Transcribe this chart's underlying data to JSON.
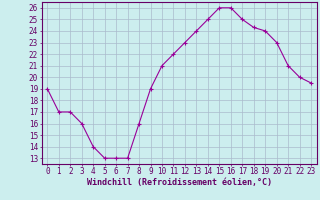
{
  "x": [
    0,
    1,
    2,
    3,
    4,
    5,
    6,
    7,
    8,
    9,
    10,
    11,
    12,
    13,
    14,
    15,
    16,
    17,
    18,
    19,
    20,
    21,
    22,
    23
  ],
  "y": [
    19,
    17,
    17,
    16,
    14,
    13,
    13,
    13,
    16,
    19,
    21,
    22,
    23,
    24,
    25,
    26,
    26,
    25,
    24.3,
    24,
    23,
    21,
    20,
    19.5
  ],
  "line_color": "#990099",
  "marker": "+",
  "marker_size": 3,
  "bg_color": "#cceeee",
  "grid_color": "#aabbcc",
  "xlabel": "Windchill (Refroidissement éolien,°C)",
  "xlabel_fontsize": 6.0,
  "ylabel_ticks": [
    13,
    14,
    15,
    16,
    17,
    18,
    19,
    20,
    21,
    22,
    23,
    24,
    25,
    26
  ],
  "xtick_labels": [
    "0",
    "1",
    "2",
    "3",
    "4",
    "5",
    "6",
    "7",
    "8",
    "9",
    "10",
    "11",
    "12",
    "13",
    "14",
    "15",
    "16",
    "17",
    "18",
    "19",
    "20",
    "21",
    "22",
    "23"
  ],
  "xlim": [
    -0.5,
    23.5
  ],
  "ylim": [
    12.5,
    26.5
  ],
  "tick_fontsize": 5.5,
  "axis_color": "#660066"
}
